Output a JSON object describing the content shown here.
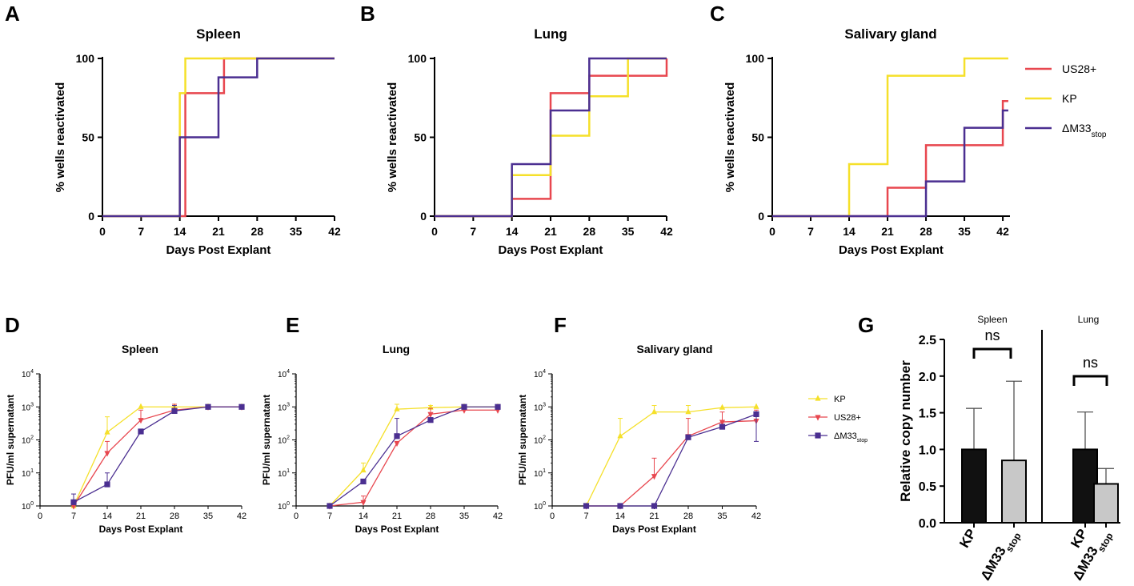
{
  "colors": {
    "us28": "#e8474f",
    "kp": "#f5e02a",
    "dm33": "#4b2f91",
    "black": "#000000",
    "kp_bar": "#111111",
    "dm33_bar": "#c8c8c8"
  },
  "legend_top": [
    {
      "key": "us28",
      "label": "US28+"
    },
    {
      "key": "kp",
      "label": "KP"
    },
    {
      "key": "dm33",
      "label": "ΔM33",
      "sub": "stop"
    }
  ],
  "legend_bottom": [
    {
      "key": "kp",
      "label": "KP",
      "marker": "triangle-up"
    },
    {
      "key": "us28",
      "label": "US28+",
      "marker": "triangle-down"
    },
    {
      "key": "dm33",
      "label": "ΔM33",
      "sub": "stop",
      "marker": "square"
    }
  ],
  "chart_data": [
    {
      "panel": "A",
      "type": "line",
      "step": true,
      "title": "Spleen",
      "xlabel": "Days Post Explant",
      "ylabel": "% wells reactivated",
      "xlim": [
        0,
        42
      ],
      "xticks": [
        0,
        7,
        14,
        21,
        28,
        35,
        42
      ],
      "ylim": [
        0,
        100
      ],
      "yticks": [
        0,
        50,
        100
      ],
      "series": [
        {
          "key": "us28",
          "name": "US28+",
          "x": [
            0,
            15,
            22,
            28,
            42
          ],
          "y": [
            0,
            78,
            100,
            100,
            100
          ]
        },
        {
          "key": "kp",
          "name": "KP",
          "x": [
            0,
            14,
            15,
            42
          ],
          "y": [
            0,
            78,
            100,
            100
          ]
        },
        {
          "key": "dm33",
          "name": "ΔM33stop",
          "x": [
            0,
            14,
            21,
            28,
            42
          ],
          "y": [
            0,
            50,
            88,
            100,
            100
          ]
        }
      ]
    },
    {
      "panel": "B",
      "type": "line",
      "step": true,
      "title": "Lung",
      "xlabel": "Days Post Explant",
      "ylabel": "% wells reactivated",
      "xlim": [
        0,
        42
      ],
      "xticks": [
        0,
        7,
        14,
        21,
        28,
        35,
        42
      ],
      "ylim": [
        0,
        100
      ],
      "yticks": [
        0,
        50,
        100
      ],
      "series": [
        {
          "key": "us28",
          "name": "US28+",
          "x": [
            0,
            14,
            21,
            28,
            42
          ],
          "y": [
            0,
            11,
            78,
            89,
            100
          ]
        },
        {
          "key": "kp",
          "name": "KP",
          "x": [
            0,
            14,
            21,
            28,
            35,
            42
          ],
          "y": [
            0,
            26,
            51,
            76,
            100,
            100
          ]
        },
        {
          "key": "dm33",
          "name": "ΔM33stop",
          "x": [
            0,
            14,
            21,
            28,
            42
          ],
          "y": [
            0,
            33,
            67,
            100,
            100
          ]
        }
      ]
    },
    {
      "panel": "C",
      "type": "line",
      "step": true,
      "title": "Salivary gland",
      "xlabel": "Days Post Explant",
      "ylabel": "% wells reactivated",
      "xlim": [
        0,
        42
      ],
      "xticks": [
        0,
        7,
        14,
        21,
        28,
        35,
        42
      ],
      "ylim": [
        0,
        100
      ],
      "yticks": [
        0,
        50,
        100
      ],
      "series": [
        {
          "key": "us28",
          "name": "US28+",
          "x": [
            0,
            21,
            28,
            42,
            43
          ],
          "y": [
            0,
            18,
            45,
            73,
            73
          ]
        },
        {
          "key": "kp",
          "name": "KP",
          "x": [
            0,
            14,
            21,
            35,
            43
          ],
          "y": [
            0,
            33,
            89,
            100,
            100
          ]
        },
        {
          "key": "dm33",
          "name": "ΔM33stop",
          "x": [
            0,
            28,
            35,
            42,
            43
          ],
          "y": [
            0,
            22,
            56,
            67,
            67
          ]
        }
      ]
    },
    {
      "panel": "D",
      "type": "line",
      "yscale": "log",
      "title": "Spleen",
      "xlabel": "Days Post Explant",
      "ylabel": "PFU/ml supernatant",
      "xlim": [
        0,
        42
      ],
      "xticks": [
        0,
        7,
        14,
        21,
        28,
        35,
        42
      ],
      "ylim": [
        1,
        10000
      ],
      "yticks": [
        1,
        10,
        100,
        1000,
        10000
      ],
      "series": [
        {
          "key": "kp",
          "name": "KP",
          "marker": "triangle-up",
          "x": [
            7,
            14,
            21,
            28,
            35,
            42
          ],
          "y": [
            1,
            170,
            1000,
            1000,
            1000,
            1000
          ],
          "err": [
            1.5,
            500,
            1000,
            1000,
            1000,
            1000
          ]
        },
        {
          "key": "us28",
          "name": "US28+",
          "marker": "triangle-down",
          "x": [
            7,
            14,
            21,
            28,
            35,
            42
          ],
          "y": [
            1,
            40,
            400,
            800,
            1000,
            1000
          ],
          "err": [
            1.5,
            90,
            800,
            1200,
            1000,
            1000
          ]
        },
        {
          "key": "dm33",
          "name": "ΔM33stop",
          "marker": "square",
          "x": [
            7,
            14,
            21,
            28,
            35,
            42
          ],
          "y": [
            1.3,
            4.5,
            180,
            750,
            1000,
            1000
          ],
          "err": [
            2.3,
            10,
            180,
            1100,
            1000,
            1000
          ]
        }
      ]
    },
    {
      "panel": "E",
      "type": "line",
      "yscale": "log",
      "title": "Lung",
      "xlabel": "Days Post Explant",
      "ylabel": "PFU/ml supernatant",
      "xlim": [
        0,
        42
      ],
      "xticks": [
        0,
        7,
        14,
        21,
        28,
        35,
        42
      ],
      "ylim": [
        1,
        10000
      ],
      "yticks": [
        1,
        10,
        100,
        1000,
        10000
      ],
      "series": [
        {
          "key": "kp",
          "name": "KP",
          "marker": "triangle-up",
          "x": [
            7,
            14,
            21,
            28,
            35,
            42
          ],
          "y": [
            1,
            12,
            850,
            950,
            1000,
            1000
          ],
          "err": [
            1,
            20,
            1200,
            1100,
            1000,
            1000
          ]
        },
        {
          "key": "us28",
          "name": "US28+",
          "marker": "triangle-down",
          "x": [
            7,
            14,
            21,
            28,
            35,
            42
          ],
          "y": [
            1,
            1.3,
            80,
            600,
            800,
            800
          ],
          "err": [
            1,
            2,
            80,
            900,
            1100,
            1000
          ]
        },
        {
          "key": "dm33",
          "name": "ΔM33stop",
          "marker": "square",
          "x": [
            7,
            14,
            21,
            28,
            35,
            42
          ],
          "y": [
            1,
            5.5,
            130,
            400,
            1000,
            1000
          ],
          "err": [
            1,
            5.5,
            450,
            400,
            1000,
            1000
          ]
        }
      ]
    },
    {
      "panel": "F",
      "type": "line",
      "yscale": "log",
      "title": "Salivary gland",
      "xlabel": "Days Post Explant",
      "ylabel": "PFU/ml supernatant",
      "xlim": [
        0,
        42
      ],
      "xticks": [
        0,
        7,
        14,
        21,
        28,
        35,
        42
      ],
      "ylim": [
        1,
        10000
      ],
      "yticks": [
        1,
        10,
        100,
        1000,
        10000
      ],
      "series": [
        {
          "key": "kp",
          "name": "KP",
          "marker": "triangle-up",
          "x": [
            7,
            14,
            21,
            28,
            35,
            42
          ],
          "y": [
            1,
            130,
            700,
            700,
            950,
            1000
          ],
          "err": [
            1,
            450,
            1100,
            1100,
            1000,
            1000
          ]
        },
        {
          "key": "us28",
          "name": "US28+",
          "marker": "triangle-down",
          "x": [
            7,
            14,
            21,
            28,
            35,
            42
          ],
          "y": [
            1,
            1,
            8,
            130,
            350,
            380
          ],
          "err": [
            1,
            1,
            28,
            450,
            700,
            800
          ]
        },
        {
          "key": "dm33",
          "name": "ΔM33stop",
          "marker": "square",
          "x": [
            7,
            14,
            21,
            28,
            35,
            42
          ],
          "y": [
            1,
            1,
            1,
            120,
            250,
            600
          ],
          "err": [
            1,
            1,
            1,
            120,
            250,
            600
          ],
          "err_low": [
            1,
            1,
            1,
            120,
            250,
            90
          ]
        }
      ]
    },
    {
      "panel": "G",
      "type": "bar",
      "ylabel": "Relative copy number",
      "ylim": [
        0,
        2.5
      ],
      "yticks": [
        0.0,
        0.5,
        1.0,
        1.5,
        2.0,
        2.5
      ],
      "groups": [
        {
          "name": "Spleen",
          "sig": "ns",
          "bars": [
            {
              "label": "KP",
              "value": 1.0,
              "err": 0.56,
              "fill": "kp_bar"
            },
            {
              "label": "ΔM33",
              "sub": "stop",
              "value": 0.85,
              "err": 1.08,
              "fill": "dm33_bar"
            }
          ]
        },
        {
          "name": "Lung",
          "sig": "ns",
          "bars": [
            {
              "label": "KP",
              "value": 1.0,
              "err": 0.51,
              "fill": "kp_bar"
            },
            {
              "label": "ΔM33",
              "sub": "stop",
              "value": 0.53,
              "err": 0.21,
              "fill": "dm33_bar"
            }
          ]
        }
      ]
    }
  ]
}
